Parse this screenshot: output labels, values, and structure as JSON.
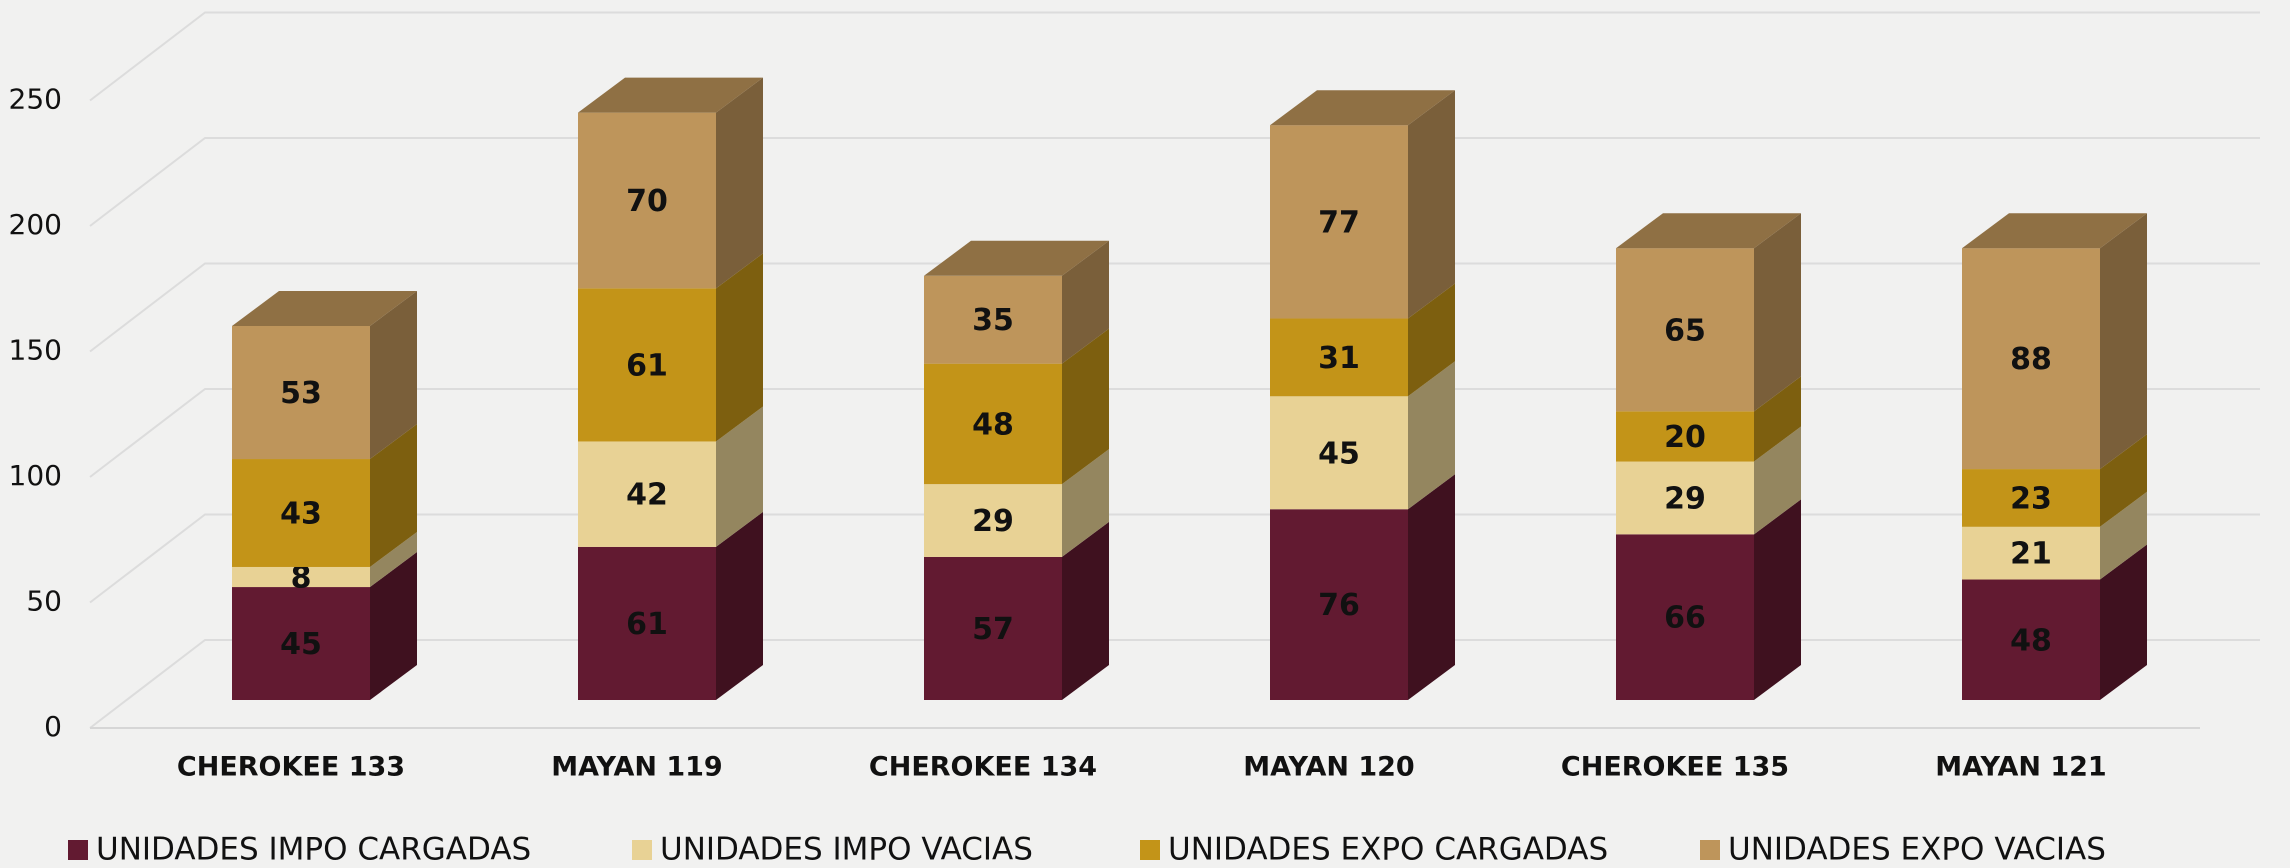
{
  "chart_data": {
    "type": "bar3d_stacked",
    "categories": [
      "CHEROKEE 133",
      "MAYAN 119",
      "CHEROKEE 134",
      "MAYAN 120",
      "CHEROKEE 135",
      "MAYAN 121"
    ],
    "series": [
      {
        "name": "UNIDADES IMPO CARGADAS",
        "color": "#621a31",
        "values": [
          45,
          61,
          57,
          76,
          66,
          48
        ]
      },
      {
        "name": "UNIDADES IMPO VACIAS",
        "color": "#e8d295",
        "values": [
          8,
          42,
          29,
          45,
          29,
          21
        ]
      },
      {
        "name": "UNIDADES EXPO CARGADAS",
        "color": "#c39418",
        "values": [
          43,
          61,
          48,
          31,
          20,
          23
        ]
      },
      {
        "name": "UNIDADES EXPO VACIAS",
        "color": "#be955b",
        "values": [
          53,
          70,
          35,
          77,
          65,
          88
        ]
      }
    ],
    "ylim": [
      0,
      250
    ],
    "yticks": [
      0,
      50,
      100,
      150,
      200,
      250
    ],
    "grid": true,
    "legend": "bottom"
  }
}
